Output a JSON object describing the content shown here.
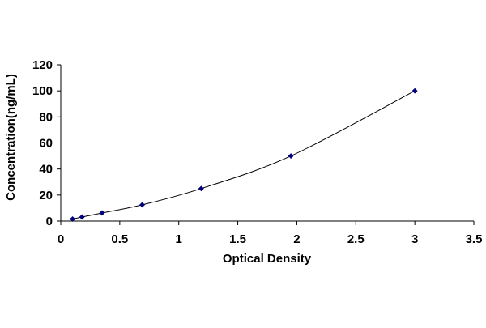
{
  "chart_data": {
    "type": "scatter",
    "title": "",
    "xlabel": "Optical Density",
    "ylabel": "Concentration(ng/mL)",
    "xlim": [
      0,
      3.5
    ],
    "ylim": [
      0,
      120
    ],
    "xticks": [
      "0",
      "0.5",
      "1",
      "1.5",
      "2",
      "2.5",
      "3",
      "3.5"
    ],
    "yticks": [
      "0",
      "20",
      "40",
      "60",
      "80",
      "100",
      "120"
    ],
    "grid": false,
    "legend": "none",
    "series": [
      {
        "marker": "diamond",
        "trendline": "smooth curve",
        "x": [
          0.1,
          0.18,
          0.35,
          0.69,
          1.19,
          1.95,
          3.0
        ],
        "y": [
          1.56,
          3.12,
          6.25,
          12.5,
          25,
          50,
          100
        ]
      }
    ],
    "colors": {
      "marker": "#00007f",
      "line": "#000000",
      "axis": "#000000"
    }
  }
}
